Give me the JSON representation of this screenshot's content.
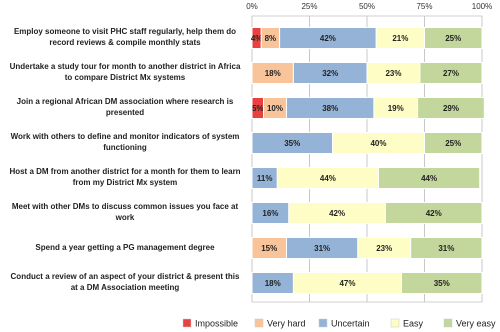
{
  "chart_data": {
    "type": "stacked-bar-horizontal",
    "categories": [
      "Employ someone to visit PHC staff regularly, help them do record reviews & compile monthly stats",
      "Undertake a study tour for month to another district in Africa to compare District Mx systems",
      "Join a regional African DM association where research is presented",
      "Work with others to define and monitor indicators of system functioning",
      "Host a DM from another district for a month for them to learn from my District Mx system",
      "Meet with other DMs to discuss common issues you face at work",
      "Spend a year getting a PG management degree",
      "Conduct a review of an aspect of your district & present this at a DM Association meeting"
    ],
    "series": [
      {
        "name": "Impossible",
        "color": "#e8413f",
        "values": [
          4,
          0,
          5,
          0,
          0,
          0,
          0,
          0
        ],
        "value_labels": [
          "4%",
          null,
          "5%",
          null,
          null,
          null,
          null,
          null
        ]
      },
      {
        "name": "Very hard",
        "color": "#f9c49a",
        "values": [
          8,
          18,
          10,
          0,
          0,
          0,
          15,
          0
        ],
        "value_labels": [
          "8%",
          "18%",
          "10%",
          null,
          null,
          null,
          "15%",
          null
        ]
      },
      {
        "name": "Uncertain",
        "color": "#95b3d7",
        "values": [
          42,
          32,
          38,
          35,
          11,
          16,
          31,
          18
        ],
        "value_labels": [
          "42%",
          "32%",
          "38%",
          "35%",
          "11%",
          "16%",
          "31%",
          "18%"
        ]
      },
      {
        "name": "Easy",
        "color": "#fefdc5",
        "values": [
          21,
          23,
          19,
          40,
          44,
          42,
          23,
          47
        ],
        "value_labels": [
          "21%",
          "23%",
          "19%",
          "40%",
          "44%",
          "42%",
          "23%",
          "47%"
        ]
      },
      {
        "name": "Very easy",
        "color": "#c3d69b",
        "values": [
          25,
          27,
          29,
          25,
          44,
          42,
          31,
          35
        ],
        "value_labels": [
          "25%",
          "27%",
          "29%",
          "25%",
          "44%",
          "42%",
          "31%",
          "35%"
        ]
      }
    ],
    "xlim": [
      0,
      100
    ],
    "xticks": [
      {
        "value": 0,
        "label": "0%"
      },
      {
        "value": 25,
        "label": "25%"
      },
      {
        "value": 50,
        "label": "50%"
      },
      {
        "value": 75,
        "label": "75%"
      },
      {
        "value": 100,
        "label": "100%"
      }
    ],
    "grid": true,
    "legend": "bottom"
  }
}
